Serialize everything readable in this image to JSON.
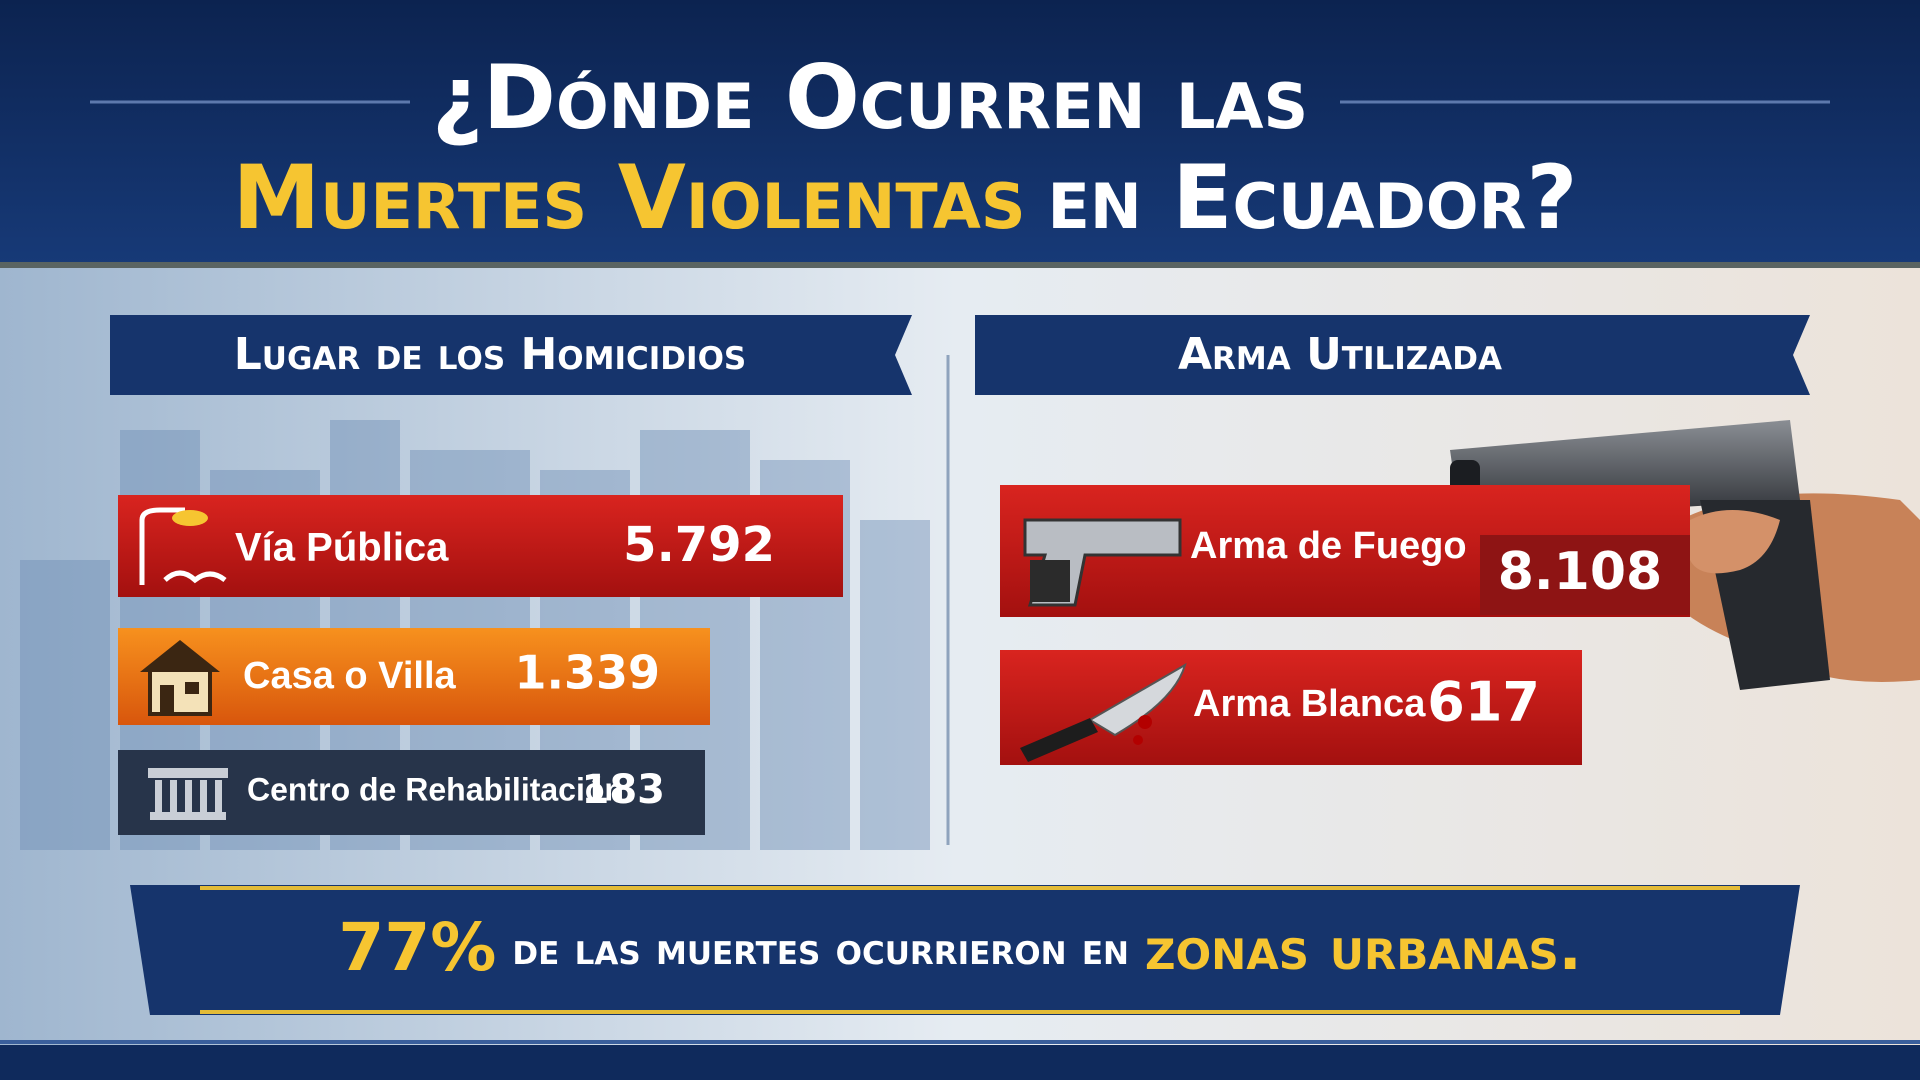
{
  "title": {
    "line1": "¿Dónde Ocurren las",
    "line2_highlight": "Muertes Violentas",
    "line2_rest": "en Ecuador?"
  },
  "sections": [
    {
      "heading": "Lugar de los Homicidios",
      "items": [
        {
          "label": "Vía Pública",
          "value": "5.792"
        },
        {
          "label": "Casa o Villa",
          "value": "1.339"
        },
        {
          "label": "Centro de Rehabilitación",
          "value": "183"
        }
      ]
    },
    {
      "heading": "Arma Utilizada",
      "items": [
        {
          "label": "Arma de Fuego",
          "value": "8.108"
        },
        {
          "label": "Arma Blanca",
          "value": "617"
        }
      ]
    }
  ],
  "footer": {
    "highlight_percent": "77%",
    "middle": "de las muertes ocurrieron en",
    "highlight_end": "zonas urbanas."
  }
}
